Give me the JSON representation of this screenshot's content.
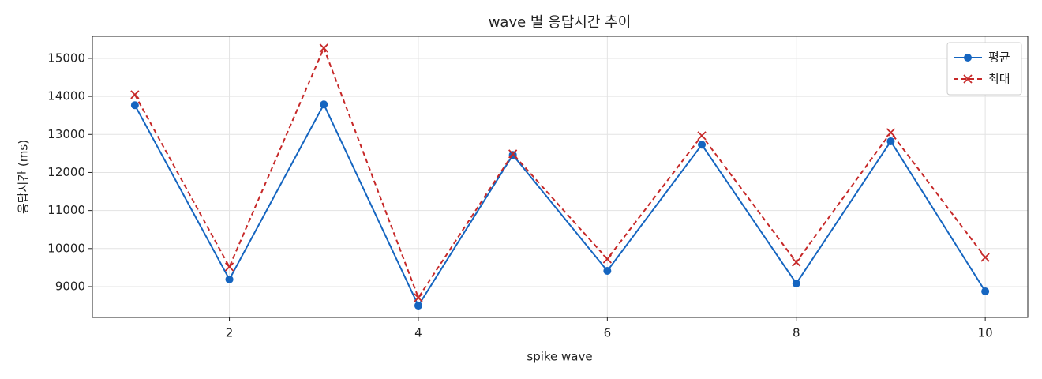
{
  "chart_data": {
    "type": "line",
    "title": "wave 별 응답시간 추이",
    "x_label": "spike wave",
    "y_label": "응답시간 (ms)",
    "x": [
      1,
      2,
      3,
      4,
      5,
      6,
      7,
      8,
      9,
      10
    ],
    "series": [
      {
        "name": "평균",
        "color": "#1565c0",
        "marker": "circle",
        "dash": "solid",
        "values": [
          13770,
          9190,
          13790,
          8500,
          12460,
          9415,
          12730,
          9083,
          12820,
          8875
        ]
      },
      {
        "name": "최대",
        "color": "#c62828",
        "marker": "x",
        "dash": "dashed",
        "values": [
          14045,
          9520,
          15270,
          8709,
          12490,
          9727,
          12968,
          9643,
          13051,
          9768
        ]
      }
    ],
    "xlim": [
      0.55,
      10.45
    ],
    "ylim": [
      8190,
      15580
    ],
    "xticks": [
      2,
      4,
      6,
      8,
      10
    ],
    "yticks": [
      9000,
      10000,
      11000,
      12000,
      13000,
      14000,
      15000
    ],
    "grid": true,
    "legend": "upper right"
  }
}
